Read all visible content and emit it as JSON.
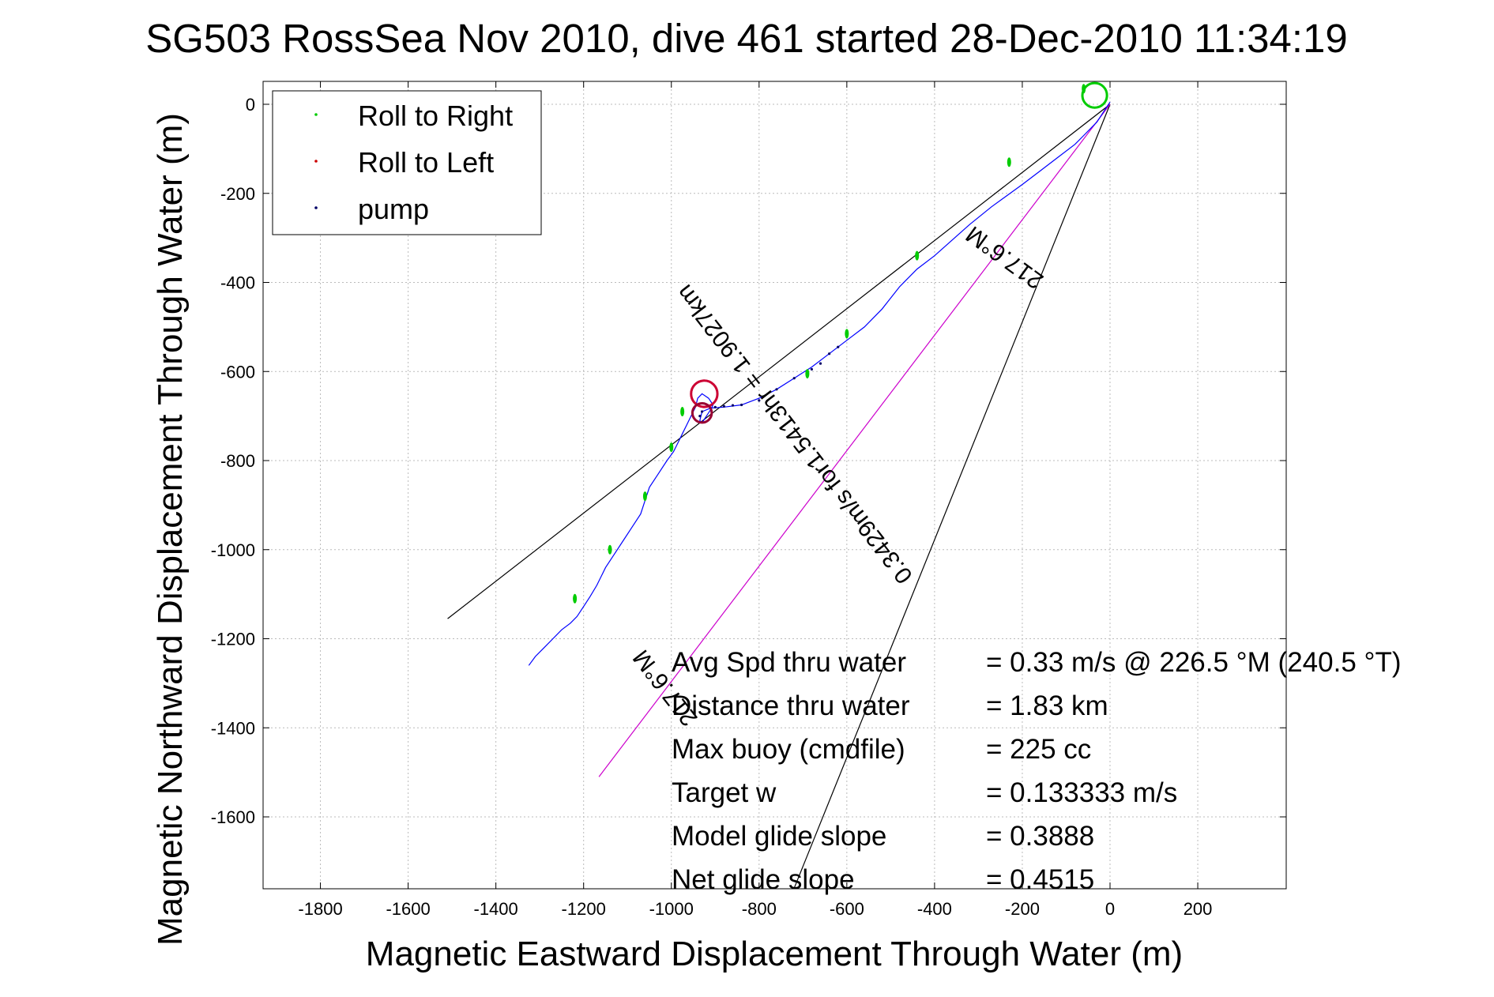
{
  "chart_data": {
    "type": "line",
    "title": "SG503 RossSea Nov 2010, dive 461 started 28-Dec-2010 11:34:19",
    "xlabel": "Magnetic Eastward Displacement Through Water (m)",
    "ylabel": "Magnetic Northward Displacement Through Water (m)",
    "xlim": [
      -1900,
      400
    ],
    "ylim": [
      -1760,
      55
    ],
    "xticks": [
      -1800,
      -1600,
      -1400,
      -1200,
      -1000,
      -800,
      -600,
      -400,
      -200,
      0,
      200
    ],
    "yticks": [
      0,
      -200,
      -400,
      -600,
      -800,
      -1000,
      -1200,
      -1400,
      -1600
    ],
    "grid": true,
    "legend": {
      "placement": "top-left",
      "entries": [
        {
          "label": "Roll to Right",
          "color": "#00cc00"
        },
        {
          "label": "Roll to Left",
          "color": "#cc0000"
        },
        {
          "label": "pump",
          "color": "#000066"
        }
      ]
    },
    "track": {
      "color": "#0000ff",
      "x": [
        0,
        -10,
        -30,
        -60,
        -80,
        -120,
        -160,
        -200,
        -235,
        -270,
        -320,
        -360,
        -400,
        -440,
        -480,
        -520,
        -560,
        -600,
        -640,
        -680,
        -720,
        -760,
        -800,
        -840,
        -880,
        -910,
        -930,
        -935,
        -930,
        -920,
        -910,
        -905,
        -915,
        -930,
        -940,
        -945,
        -955,
        -965,
        -975,
        -985,
        -995,
        -1010,
        -1030,
        -1050,
        -1060,
        -1070,
        -1090,
        -1110,
        -1130,
        -1150,
        -1170,
        -1185,
        -1195,
        -1205,
        -1215,
        -1230,
        -1250,
        -1270,
        -1290,
        -1310,
        -1325
      ],
      "y": [
        5,
        -10,
        -40,
        -70,
        -90,
        -120,
        -150,
        -180,
        -205,
        -230,
        -270,
        -305,
        -340,
        -370,
        -410,
        -460,
        -500,
        -530,
        -560,
        -590,
        -615,
        -640,
        -660,
        -675,
        -680,
        -682,
        -690,
        -710,
        -715,
        -700,
        -685,
        -675,
        -660,
        -650,
        -660,
        -680,
        -700,
        -720,
        -740,
        -760,
        -780,
        -800,
        -830,
        -860,
        -890,
        -920,
        -950,
        -980,
        -1010,
        -1040,
        -1080,
        -1105,
        -1120,
        -1135,
        -1150,
        -1165,
        -1180,
        -1200,
        -1220,
        -1240,
        -1260
      ]
    },
    "loop_top": {
      "cx": -35,
      "cy": 20,
      "r": 28
    },
    "loop_mid_upper": {
      "cx": -925,
      "cy": -650,
      "r": 30
    },
    "loop_mid_lower": {
      "cx": -930,
      "cy": -693,
      "r": 22
    },
    "green_marks": [
      [
        -230,
        -130
      ],
      [
        -440,
        -340
      ],
      [
        -600,
        -515
      ],
      [
        -690,
        -605
      ],
      [
        -1000,
        -770
      ],
      [
        -1060,
        -880
      ],
      [
        -1140,
        -1000
      ],
      [
        -1220,
        -1110
      ],
      [
        -975,
        -690
      ],
      [
        -60,
        35
      ]
    ],
    "pump_marks": [
      [
        -900,
        -680
      ],
      [
        -880,
        -678
      ],
      [
        -860,
        -676
      ],
      [
        -840,
        -675
      ],
      [
        -800,
        -665
      ],
      [
        -760,
        -640
      ],
      [
        -720,
        -615
      ],
      [
        -680,
        -595
      ],
      [
        -660,
        -582
      ],
      [
        -640,
        -560
      ],
      [
        -620,
        -545
      ],
      [
        -935,
        -700
      ],
      [
        -930,
        -690
      ]
    ],
    "lines": [
      {
        "color": "#000000",
        "x": [
          0,
          -1510
        ],
        "y": [
          0,
          -1155
        ]
      },
      {
        "color": "#000000",
        "x": [
          0,
          -720
        ],
        "y": [
          0,
          -1760
        ]
      },
      {
        "color": "#cc00cc",
        "x": [
          0,
          -1165
        ],
        "y": [
          0,
          -1510
        ]
      }
    ],
    "rotated_labels": [
      {
        "text": "0.3429m/s for1.5413hr = 1.9027km",
        "x": -705,
        "y": -730,
        "angle": 232.4
      },
      {
        "text": "217.6°M",
        "x": -1000,
        "y": -1300,
        "angle": 232.4
      },
      {
        "text": "217.6°M",
        "x": -230,
        "y": -330,
        "angle": 216.0
      }
    ],
    "annotations": [
      {
        "label": "Avg Spd thru water",
        "value": "=  0.33 m/s @ 226.5 °M (240.5 °T)"
      },
      {
        "label": "Distance thru water",
        "value": "=  1.83 km"
      },
      {
        "label": "Max buoy (cmdfile)",
        "value": "= 225 cc"
      },
      {
        "label": "Target w",
        "value": "= 0.133333 m/s"
      },
      {
        "label": "Model glide slope",
        "value": "= 0.3888"
      },
      {
        "label": "Net glide slope",
        "value": "= 0.4515"
      }
    ]
  }
}
